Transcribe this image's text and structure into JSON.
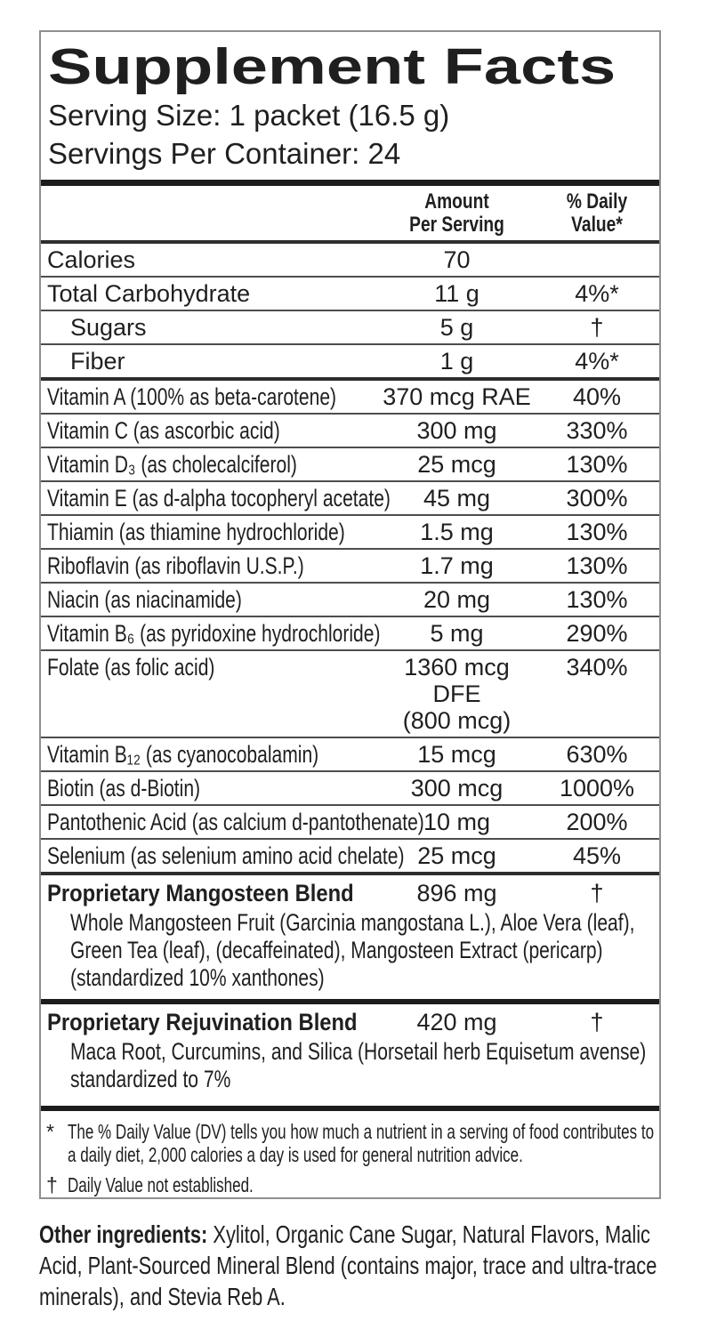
{
  "label": {
    "title": "Supplement Facts",
    "serving_size": "Serving Size: 1 packet (16.5 g)",
    "servings_per_container": "Servings Per Container: 24",
    "columns": {
      "amount": [
        "Amount",
        "Per Serving"
      ],
      "daily_value": [
        "% Daily",
        "Value*"
      ]
    },
    "text_color": "#1f1f1f",
    "border_color": "#8f8f8f"
  },
  "table": {
    "rows": [
      {
        "name": "Calories",
        "amount": "70",
        "dv": ""
      },
      {
        "name": "Total Carbohydrate",
        "amount": "11 g",
        "dv": "4%*"
      },
      {
        "name": "Sugars",
        "amount": "5 g",
        "dv": "†"
      },
      {
        "name": "Fiber",
        "amount": "1 g",
        "dv": "4%*"
      },
      {
        "name": "Vitamin A (100% as beta-carotene)",
        "amount": "370 mcg RAE",
        "dv": "40%"
      },
      {
        "name": "Vitamin C (as ascorbic acid)",
        "amount": "300 mg",
        "dv": "330%"
      },
      {
        "name": "Vitamin D₃ (as cholecalciferol)",
        "amount": "25 mcg",
        "dv": "130%"
      },
      {
        "name": "Vitamin E (as d-alpha tocopheryl acetate)",
        "amount": "45 mg",
        "dv": "300%"
      },
      {
        "name": "Thiamin (as thiamine hydrochloride)",
        "amount": "1.5 mg",
        "dv": "130%"
      },
      {
        "name": "Riboflavin (as riboflavin U.S.P.)",
        "amount": "1.7 mg",
        "dv": "130%"
      },
      {
        "name": "Niacin (as niacinamide)",
        "amount": "20 mg",
        "dv": "130%"
      },
      {
        "name": "Vitamin B₆ (as pyridoxine hydrochloride)",
        "amount": "5 mg",
        "dv": "290%"
      },
      {
        "name": "Folate (as folic acid)",
        "amount": "1360 mcg DFE",
        "amount2": "(800 mcg)",
        "dv": "340%"
      },
      {
        "name": "Vitamin B₁₂ (as cyanocobalamin)",
        "amount": "15 mcg",
        "dv": "630%"
      },
      {
        "name": "Biotin (as d-Biotin)",
        "amount": "300 mcg",
        "dv": "1000%"
      },
      {
        "name": "Pantothenic Acid (as calcium d-pantothenate)",
        "amount": "10 mg",
        "dv": "200%"
      },
      {
        "name": "Selenium (as selenium amino acid chelate)",
        "amount": "25 mcg",
        "dv": "45%"
      }
    ]
  },
  "blends": [
    {
      "name": "Proprietary Mangosteen Blend",
      "amount": "896 mg",
      "dv": "†",
      "description": "Whole Mangosteen Fruit (Garcinia mangostana L.), Aloe Vera (leaf), Green Tea (leaf), (decaffeinated), Mangosteen Extract (pericarp) (standardized 10% xanthones)"
    },
    {
      "name": "Proprietary Rejuvination Blend",
      "amount": "420 mg",
      "dv": "†",
      "description": "Maca Root, Curcumins, and Silica (Horsetail herb Equisetum avense) standardized to 7%"
    }
  ],
  "footnotes": [
    {
      "marker": "*",
      "text": "The % Daily Value (DV) tells you how much a nutrient in a serving of food contributes to a daily diet, 2,000 calories a day is used for general nutrition advice."
    },
    {
      "marker": "†",
      "text": "Daily Value not established."
    }
  ],
  "other_ingredients": {
    "lead": "Other ingredients:",
    "text": "Xylitol, Organic Cane Sugar, Natural Flavors, Malic Acid, Plant-Sourced Mineral Blend (contains major, trace and ultra-trace minerals), and Stevia Reb A."
  }
}
